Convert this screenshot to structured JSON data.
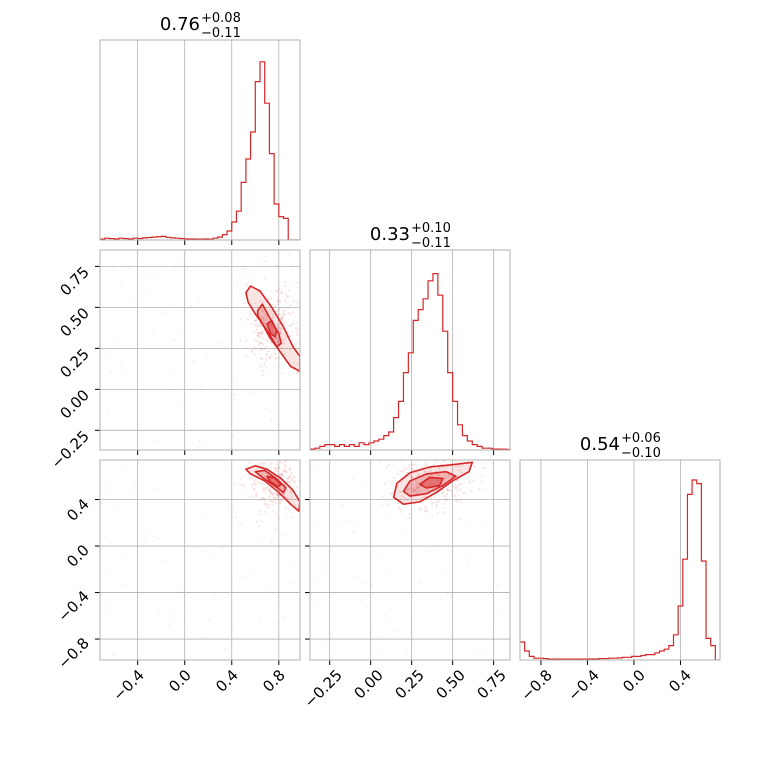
{
  "colors": {
    "accent": "#d62728",
    "grid": "#b0b0b0"
  },
  "chart_data": {
    "type": "corner",
    "grid": true,
    "parameters": [
      {
        "index": 0,
        "range": [
          -0.72,
          0.98
        ],
        "ticks": [
          -0.4,
          0.0,
          0.4,
          0.8
        ],
        "tick_labels": [
          "−0.4",
          "0.0",
          "0.4",
          "0.8"
        ],
        "summary": {
          "median": "0.76",
          "plus": "+0.08",
          "minus": "−0.11"
        }
      },
      {
        "index": 1,
        "range": [
          -0.37,
          0.85
        ],
        "ticks": [
          -0.25,
          0.0,
          0.25,
          0.5,
          0.75
        ],
        "tick_labels": [
          "−0.25",
          "0.00",
          "0.25",
          "0.50",
          "0.75"
        ],
        "summary": {
          "median": "0.33",
          "plus": "+0.10",
          "minus": "−0.11"
        }
      },
      {
        "index": 2,
        "range": [
          -0.98,
          0.74
        ],
        "ticks": [
          -0.8,
          -0.4,
          0.0,
          0.4
        ],
        "tick_labels": [
          "−0.8",
          "−0.4",
          "0.0",
          "0.4"
        ],
        "summary": {
          "median": "0.54",
          "plus": "+0.06",
          "minus": "−0.10"
        }
      }
    ],
    "histograms": [
      {
        "param": 0,
        "ymax": 1.0,
        "x": [
          -0.72,
          -0.68,
          -0.64,
          -0.6,
          -0.56,
          -0.52,
          -0.48,
          -0.44,
          -0.4,
          -0.36,
          -0.32,
          -0.28,
          -0.24,
          -0.2,
          -0.16,
          -0.12,
          -0.08,
          -0.04,
          0.0,
          0.04,
          0.08,
          0.12,
          0.16,
          0.2,
          0.24,
          0.28,
          0.32,
          0.36,
          0.4,
          0.44,
          0.48,
          0.52,
          0.56,
          0.6,
          0.64,
          0.68,
          0.72,
          0.76,
          0.8,
          0.84,
          0.88,
          0.92,
          0.96
        ],
        "values": [
          0.005,
          0.01,
          0.008,
          0.006,
          0.01,
          0.008,
          0.006,
          0.01,
          0.008,
          0.012,
          0.014,
          0.016,
          0.018,
          0.02,
          0.015,
          0.012,
          0.01,
          0.008,
          0.006,
          0.006,
          0.005,
          0.005,
          0.006,
          0.004,
          0.01,
          0.016,
          0.03,
          0.05,
          0.1,
          0.16,
          0.32,
          0.45,
          0.6,
          0.88,
          0.99,
          0.76,
          0.48,
          0.2,
          0.13,
          0.12,
          0,
          0,
          0
        ]
      },
      {
        "param": 1,
        "ymax": 1.0,
        "x": [
          -0.37,
          -0.34,
          -0.31,
          -0.28,
          -0.25,
          -0.22,
          -0.19,
          -0.16,
          -0.13,
          -0.1,
          -0.07,
          -0.04,
          -0.01,
          0.02,
          0.05,
          0.08,
          0.11,
          0.14,
          0.17,
          0.2,
          0.23,
          0.26,
          0.29,
          0.32,
          0.35,
          0.38,
          0.41,
          0.44,
          0.47,
          0.5,
          0.53,
          0.56,
          0.59,
          0.62,
          0.65,
          0.68,
          0.71,
          0.74,
          0.77,
          0.8,
          0.83
        ],
        "values": [
          0.005,
          0.01,
          0.02,
          0.03,
          0.03,
          0.02,
          0.03,
          0.02,
          0.03,
          0.02,
          0.04,
          0.03,
          0.04,
          0.05,
          0.06,
          0.08,
          0.1,
          0.18,
          0.27,
          0.43,
          0.54,
          0.72,
          0.78,
          0.84,
          0.94,
          0.98,
          0.86,
          0.66,
          0.43,
          0.27,
          0.14,
          0.08,
          0.05,
          0.03,
          0.02,
          0.01,
          0.01,
          0.005,
          0.005,
          0.004,
          0.003
        ]
      },
      {
        "param": 2,
        "ymax": 1.0,
        "x": [
          -0.98,
          -0.94,
          -0.9,
          -0.86,
          -0.82,
          -0.78,
          -0.74,
          -0.7,
          -0.66,
          -0.62,
          -0.58,
          -0.54,
          -0.5,
          -0.46,
          -0.42,
          -0.38,
          -0.34,
          -0.3,
          -0.26,
          -0.22,
          -0.18,
          -0.14,
          -0.1,
          -0.06,
          -0.02,
          0.02,
          0.06,
          0.1,
          0.14,
          0.18,
          0.22,
          0.26,
          0.3,
          0.34,
          0.38,
          0.42,
          0.46,
          0.5,
          0.54,
          0.58,
          0.62,
          0.66,
          0.7
        ],
        "values": [
          0.1,
          0.05,
          0.02,
          0.01,
          0.01,
          0.008,
          0.005,
          0.005,
          0.005,
          0.005,
          0.005,
          0.005,
          0.005,
          0.005,
          0.005,
          0.006,
          0.006,
          0.008,
          0.008,
          0.01,
          0.01,
          0.012,
          0.015,
          0.015,
          0.02,
          0.02,
          0.025,
          0.03,
          0.03,
          0.04,
          0.05,
          0.06,
          0.08,
          0.14,
          0.3,
          0.56,
          0.92,
          1.0,
          0.98,
          0.55,
          0.12,
          0.08,
          0
        ]
      }
    ],
    "joint": [
      {
        "x_param": 0,
        "y_param": 1,
        "contours": [
          {
            "level": "outer",
            "points": [
              [
                0.52,
                0.59
              ],
              [
                0.56,
                0.63
              ],
              [
                0.64,
                0.6
              ],
              [
                0.74,
                0.5
              ],
              [
                0.84,
                0.38
              ],
              [
                0.92,
                0.26
              ],
              [
                0.98,
                0.2
              ],
              [
                0.98,
                0.11
              ],
              [
                0.9,
                0.14
              ],
              [
                0.8,
                0.24
              ],
              [
                0.7,
                0.36
              ],
              [
                0.6,
                0.46
              ],
              [
                0.54,
                0.53
              ]
            ]
          },
          {
            "level": "mid",
            "points": [
              [
                0.62,
                0.48
              ],
              [
                0.66,
                0.52
              ],
              [
                0.72,
                0.44
              ],
              [
                0.8,
                0.34
              ],
              [
                0.82,
                0.28
              ],
              [
                0.78,
                0.26
              ],
              [
                0.72,
                0.32
              ],
              [
                0.66,
                0.4
              ],
              [
                0.62,
                0.45
              ]
            ]
          },
          {
            "level": "inner",
            "points": [
              [
                0.7,
                0.4
              ],
              [
                0.74,
                0.42
              ],
              [
                0.78,
                0.36
              ],
              [
                0.77,
                0.32
              ],
              [
                0.73,
                0.34
              ]
            ]
          }
        ]
      },
      {
        "x_param": 0,
        "y_param": 2,
        "contours": [
          {
            "level": "outer",
            "points": [
              [
                0.52,
                0.66
              ],
              [
                0.6,
                0.69
              ],
              [
                0.7,
                0.66
              ],
              [
                0.82,
                0.58
              ],
              [
                0.92,
                0.48
              ],
              [
                0.98,
                0.38
              ],
              [
                0.97,
                0.3
              ],
              [
                0.9,
                0.36
              ],
              [
                0.8,
                0.46
              ],
              [
                0.68,
                0.56
              ],
              [
                0.56,
                0.62
              ]
            ]
          },
          {
            "level": "mid",
            "points": [
              [
                0.6,
                0.64
              ],
              [
                0.68,
                0.65
              ],
              [
                0.78,
                0.58
              ],
              [
                0.86,
                0.5
              ],
              [
                0.84,
                0.46
              ],
              [
                0.76,
                0.52
              ],
              [
                0.66,
                0.59
              ]
            ]
          },
          {
            "level": "inner",
            "points": [
              [
                0.7,
                0.6
              ],
              [
                0.76,
                0.59
              ],
              [
                0.82,
                0.53
              ],
              [
                0.79,
                0.51
              ],
              [
                0.72,
                0.56
              ]
            ]
          }
        ]
      },
      {
        "x_param": 1,
        "y_param": 2,
        "contours": [
          {
            "level": "outer",
            "points": [
              [
                0.14,
                0.42
              ],
              [
                0.16,
                0.54
              ],
              [
                0.24,
                0.63
              ],
              [
                0.36,
                0.68
              ],
              [
                0.5,
                0.7
              ],
              [
                0.62,
                0.72
              ],
              [
                0.6,
                0.64
              ],
              [
                0.5,
                0.56
              ],
              [
                0.4,
                0.46
              ],
              [
                0.3,
                0.38
              ],
              [
                0.2,
                0.36
              ]
            ]
          },
          {
            "level": "mid",
            "points": [
              [
                0.2,
                0.47
              ],
              [
                0.24,
                0.56
              ],
              [
                0.34,
                0.62
              ],
              [
                0.46,
                0.64
              ],
              [
                0.52,
                0.6
              ],
              [
                0.44,
                0.52
              ],
              [
                0.34,
                0.45
              ],
              [
                0.24,
                0.43
              ]
            ]
          },
          {
            "level": "inner",
            "points": [
              [
                0.3,
                0.53
              ],
              [
                0.36,
                0.59
              ],
              [
                0.44,
                0.58
              ],
              [
                0.42,
                0.52
              ],
              [
                0.34,
                0.5
              ]
            ]
          }
        ]
      }
    ]
  }
}
